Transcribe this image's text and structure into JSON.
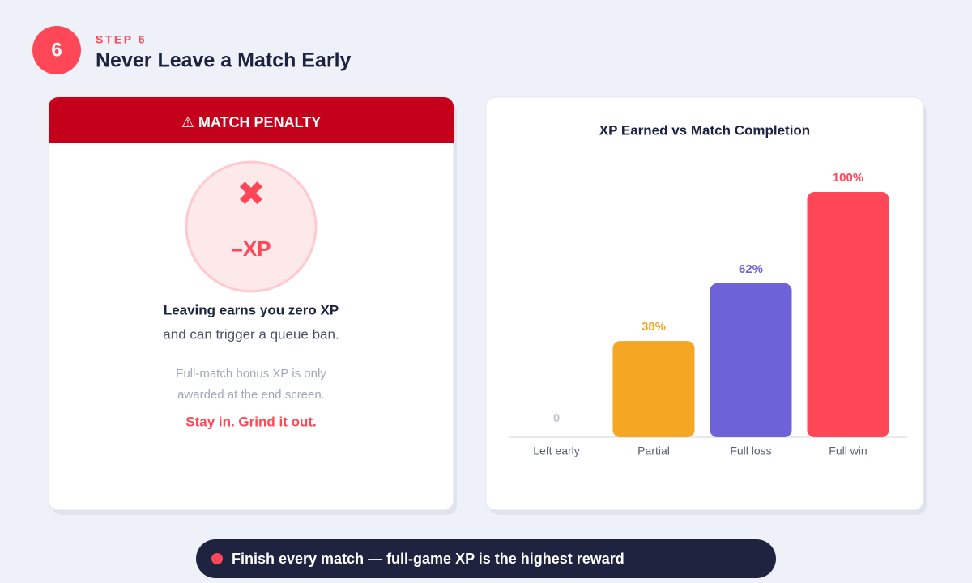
{
  "step": {
    "number": "6",
    "label": "STEP 6",
    "title": "Never Leave a Match Early"
  },
  "penalty": {
    "header": "⚠ MATCH PENALTY",
    "icon": "✖",
    "badge": "–XP",
    "headline": "Leaving earns you zero XP",
    "subline": "and can trigger a queue ban.",
    "note": [
      "Full-match bonus XP is only",
      "awarded at the end screen."
    ],
    "cta": "Stay in. Grind it out."
  },
  "chart_data": {
    "type": "bar",
    "title": "XP Earned vs Match Completion",
    "categories": [
      "Left early",
      "Partial",
      "Full loss",
      "Full win"
    ],
    "values": [
      0,
      38,
      62,
      100
    ],
    "value_labels": [
      "0",
      "38%",
      "62%",
      "100%"
    ],
    "colors": [
      "#cfd2d8",
      "#f5a623",
      "#6e62d9",
      "#ff4757"
    ],
    "ylim": [
      0,
      100
    ]
  },
  "footer": "Finish every match — full-game XP is the highest reward"
}
